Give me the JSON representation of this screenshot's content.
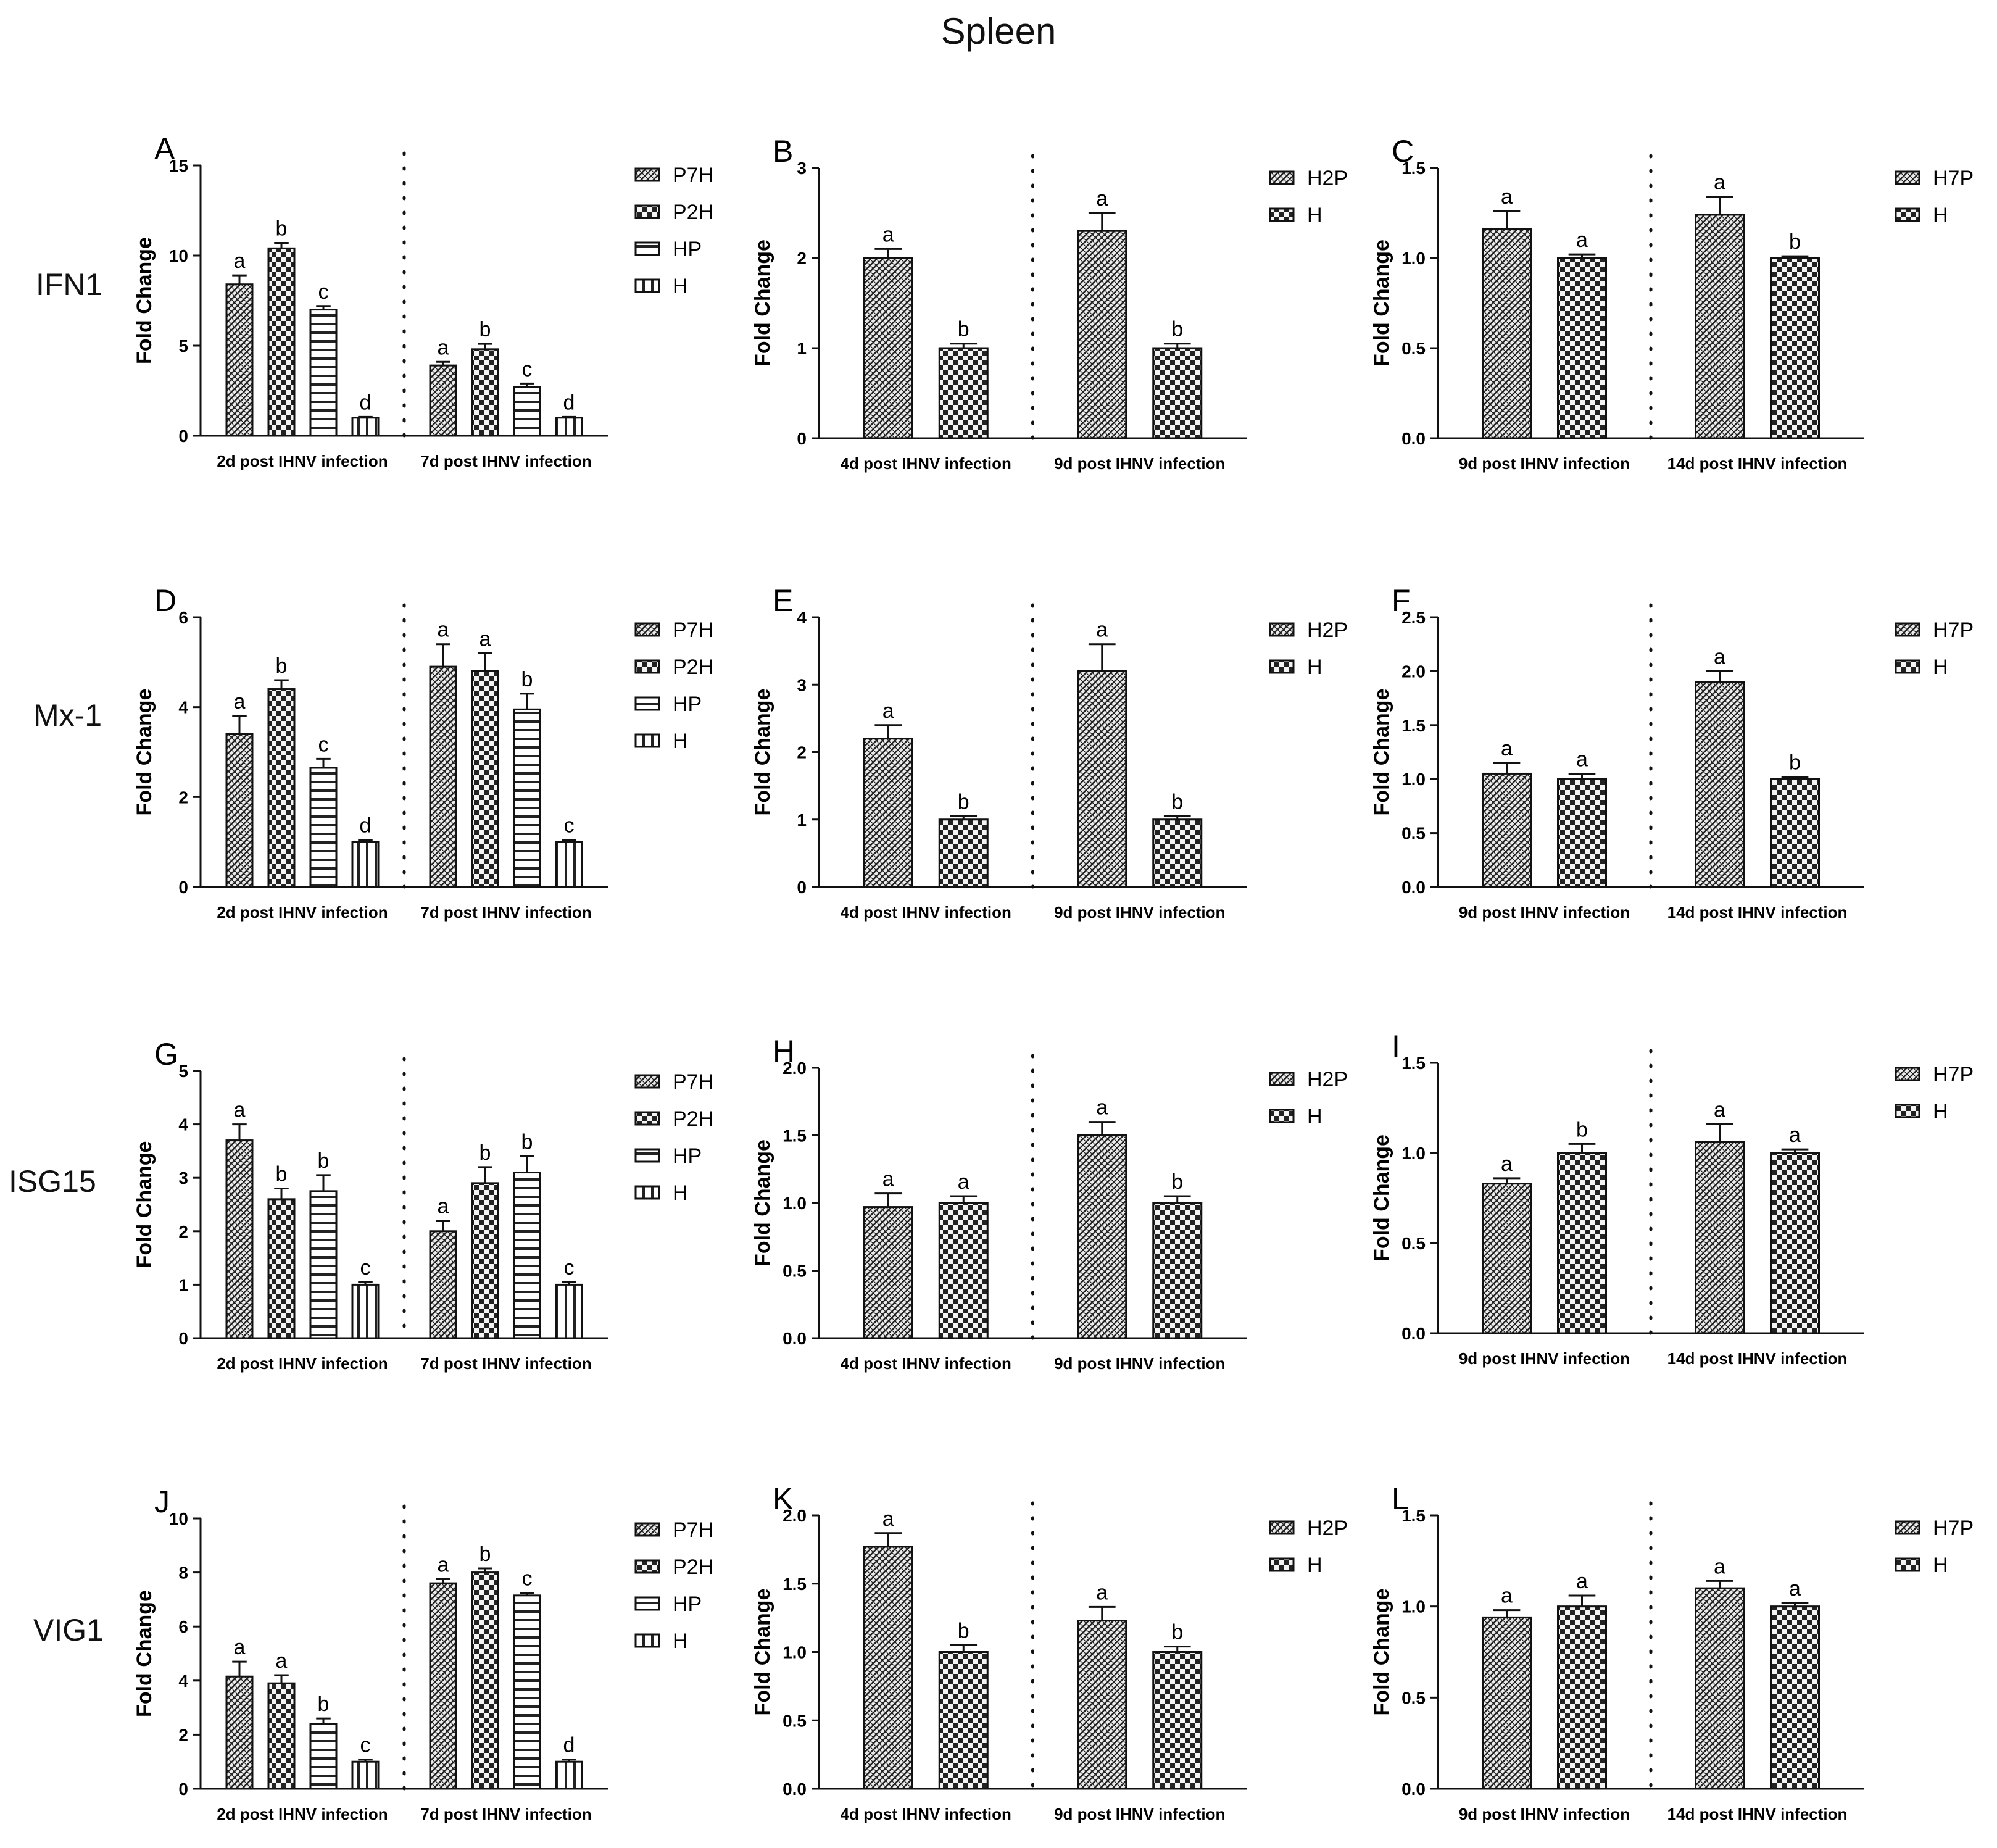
{
  "figure_title": "Spleen",
  "row_labels": [
    "IFN1",
    "Mx-1",
    "ISG15",
    "VIG1"
  ],
  "colors": {
    "bar_fill": "#e9e9e9",
    "bar_pattern": "#222222",
    "axis": "#111111"
  },
  "chart_data": [
    {
      "panel": "A",
      "type": "bar",
      "ylabel": "Fold Change",
      "ylim": [
        0,
        15
      ],
      "yticks": [
        "0",
        "5",
        "10",
        "15"
      ],
      "groups": [
        "2d post IHNV infection",
        "7d post IHNV infection"
      ],
      "series": [
        {
          "name": "P7H",
          "pattern": "dense",
          "values": [
            8.4,
            3.9
          ],
          "errors": [
            0.5,
            0.2
          ],
          "letters": [
            "a",
            "a"
          ]
        },
        {
          "name": "P2H",
          "pattern": "checker",
          "values": [
            10.4,
            4.8
          ],
          "errors": [
            0.3,
            0.3
          ],
          "letters": [
            "b",
            "b"
          ]
        },
        {
          "name": "HP",
          "pattern": "hlines",
          "values": [
            7.0,
            2.7
          ],
          "errors": [
            0.2,
            0.2
          ],
          "letters": [
            "c",
            "c"
          ]
        },
        {
          "name": "H",
          "pattern": "vlines",
          "values": [
            1.0,
            1.0
          ],
          "errors": [
            0.05,
            0.05
          ],
          "letters": [
            "d",
            "d"
          ]
        }
      ]
    },
    {
      "panel": "B",
      "type": "bar",
      "ylabel": "Fold Change",
      "ylim": [
        0,
        3
      ],
      "yticks": [
        "0",
        "1",
        "2",
        "3"
      ],
      "groups": [
        "4d post IHNV infection",
        "9d post IHNV infection"
      ],
      "series": [
        {
          "name": "H2P",
          "pattern": "dense",
          "values": [
            2.0,
            2.3
          ],
          "errors": [
            0.1,
            0.2
          ],
          "letters": [
            "a",
            "a"
          ]
        },
        {
          "name": "H",
          "pattern": "checker",
          "values": [
            1.0,
            1.0
          ],
          "errors": [
            0.05,
            0.05
          ],
          "letters": [
            "b",
            "b"
          ]
        }
      ]
    },
    {
      "panel": "C",
      "type": "bar",
      "ylabel": "Fold Change",
      "ylim": [
        0,
        1.5
      ],
      "yticks": [
        "0.0",
        "0.5",
        "1.0",
        "1.5"
      ],
      "groups": [
        "9d post IHNV infection",
        "14d post IHNV infection"
      ],
      "series": [
        {
          "name": "H7P",
          "pattern": "dense",
          "values": [
            1.16,
            1.24
          ],
          "errors": [
            0.1,
            0.1
          ],
          "letters": [
            "a",
            "a"
          ]
        },
        {
          "name": "H",
          "pattern": "checker",
          "values": [
            1.0,
            1.0
          ],
          "errors": [
            0.02,
            0.01
          ],
          "letters": [
            "a",
            "b"
          ]
        }
      ]
    },
    {
      "panel": "D",
      "type": "bar",
      "ylabel": "Fold Change",
      "ylim": [
        0,
        6
      ],
      "yticks": [
        "0",
        "2",
        "4",
        "6"
      ],
      "groups": [
        "2d post IHNV infection",
        "7d post IHNV infection"
      ],
      "series": [
        {
          "name": "P7H",
          "pattern": "dense",
          "values": [
            3.4,
            4.9
          ],
          "errors": [
            0.4,
            0.5
          ],
          "letters": [
            "a",
            "a"
          ]
        },
        {
          "name": "P2H",
          "pattern": "checker",
          "values": [
            4.4,
            4.8
          ],
          "errors": [
            0.2,
            0.4
          ],
          "letters": [
            "b",
            "a"
          ]
        },
        {
          "name": "HP",
          "pattern": "hlines",
          "values": [
            2.65,
            3.95
          ],
          "errors": [
            0.2,
            0.35
          ],
          "letters": [
            "c",
            "b"
          ]
        },
        {
          "name": "H",
          "pattern": "vlines",
          "values": [
            1.0,
            1.0
          ],
          "errors": [
            0.05,
            0.05
          ],
          "letters": [
            "d",
            "c"
          ]
        }
      ]
    },
    {
      "panel": "E",
      "type": "bar",
      "ylabel": "Fold Change",
      "ylim": [
        0,
        4
      ],
      "yticks": [
        "0",
        "1",
        "2",
        "3",
        "4"
      ],
      "groups": [
        "4d post IHNV infection",
        "9d post IHNV infection"
      ],
      "series": [
        {
          "name": "H2P",
          "pattern": "dense",
          "values": [
            2.2,
            3.2
          ],
          "errors": [
            0.2,
            0.4
          ],
          "letters": [
            "a",
            "a"
          ]
        },
        {
          "name": "H",
          "pattern": "checker",
          "values": [
            1.0,
            1.0
          ],
          "errors": [
            0.05,
            0.05
          ],
          "letters": [
            "b",
            "b"
          ]
        }
      ]
    },
    {
      "panel": "F",
      "type": "bar",
      "ylabel": "Fold Change",
      "ylim": [
        0,
        2.5
      ],
      "yticks": [
        "0.0",
        "0.5",
        "1.0",
        "1.5",
        "2.0",
        "2.5"
      ],
      "groups": [
        "9d post IHNV infection",
        "14d post IHNV infection"
      ],
      "series": [
        {
          "name": "H7P",
          "pattern": "dense",
          "values": [
            1.05,
            1.9
          ],
          "errors": [
            0.1,
            0.1
          ],
          "letters": [
            "a",
            "a"
          ]
        },
        {
          "name": "H",
          "pattern": "checker",
          "values": [
            1.0,
            1.0
          ],
          "errors": [
            0.05,
            0.02
          ],
          "letters": [
            "a",
            "b"
          ]
        }
      ]
    },
    {
      "panel": "G",
      "type": "bar",
      "ylabel": "Fold Change",
      "ylim": [
        0,
        5
      ],
      "yticks": [
        "0",
        "1",
        "2",
        "3",
        "4",
        "5"
      ],
      "groups": [
        "2d post IHNV infection",
        "7d post IHNV infection"
      ],
      "series": [
        {
          "name": "P7H",
          "pattern": "dense",
          "values": [
            3.7,
            2.0
          ],
          "errors": [
            0.3,
            0.2
          ],
          "letters": [
            "a",
            "a"
          ]
        },
        {
          "name": "P2H",
          "pattern": "checker",
          "values": [
            2.6,
            2.9
          ],
          "errors": [
            0.2,
            0.3
          ],
          "letters": [
            "b",
            "b"
          ]
        },
        {
          "name": "HP",
          "pattern": "hlines",
          "values": [
            2.75,
            3.1
          ],
          "errors": [
            0.3,
            0.3
          ],
          "letters": [
            "b",
            "b"
          ]
        },
        {
          "name": "H",
          "pattern": "vlines",
          "values": [
            1.0,
            1.0
          ],
          "errors": [
            0.05,
            0.05
          ],
          "letters": [
            "c",
            "c"
          ]
        }
      ]
    },
    {
      "panel": "H",
      "type": "bar",
      "ylabel": "Fold Change",
      "ylim": [
        0,
        2.0
      ],
      "yticks": [
        "0.0",
        "0.5",
        "1.0",
        "1.5",
        "2.0"
      ],
      "groups": [
        "4d post IHNV infection",
        "9d post IHNV infection"
      ],
      "series": [
        {
          "name": "H2P",
          "pattern": "dense",
          "values": [
            0.97,
            1.5
          ],
          "errors": [
            0.1,
            0.1
          ],
          "letters": [
            "a",
            "a"
          ]
        },
        {
          "name": "H",
          "pattern": "checker",
          "values": [
            1.0,
            1.0
          ],
          "errors": [
            0.05,
            0.05
          ],
          "letters": [
            "a",
            "b"
          ]
        }
      ]
    },
    {
      "panel": "I",
      "type": "bar",
      "ylabel": "Fold Change",
      "ylim": [
        0,
        1.5
      ],
      "yticks": [
        "0.0",
        "0.5",
        "1.0",
        "1.5"
      ],
      "groups": [
        "9d post IHNV infection",
        "14d post IHNV infection"
      ],
      "series": [
        {
          "name": "H7P",
          "pattern": "dense",
          "values": [
            0.83,
            1.06
          ],
          "errors": [
            0.03,
            0.1
          ],
          "letters": [
            "a",
            "a"
          ]
        },
        {
          "name": "H",
          "pattern": "checker",
          "values": [
            1.0,
            1.0
          ],
          "errors": [
            0.05,
            0.02
          ],
          "letters": [
            "b",
            "a"
          ]
        }
      ]
    },
    {
      "panel": "J",
      "type": "bar",
      "ylabel": "Fold Change",
      "ylim": [
        0,
        10
      ],
      "yticks": [
        "0",
        "2",
        "4",
        "6",
        "8",
        "10"
      ],
      "groups": [
        "2d post IHNV infection",
        "7d post IHNV infection"
      ],
      "series": [
        {
          "name": "P7H",
          "pattern": "dense",
          "values": [
            4.15,
            7.6
          ],
          "errors": [
            0.55,
            0.15
          ],
          "letters": [
            "a",
            "a"
          ]
        },
        {
          "name": "P2H",
          "pattern": "checker",
          "values": [
            3.9,
            8.0
          ],
          "errors": [
            0.3,
            0.15
          ],
          "letters": [
            "a",
            "b"
          ]
        },
        {
          "name": "HP",
          "pattern": "hlines",
          "values": [
            2.4,
            7.15
          ],
          "errors": [
            0.2,
            0.1
          ],
          "letters": [
            "b",
            "c"
          ]
        },
        {
          "name": "H",
          "pattern": "vlines",
          "values": [
            1.0,
            1.0
          ],
          "errors": [
            0.08,
            0.08
          ],
          "letters": [
            "c",
            "d"
          ]
        }
      ]
    },
    {
      "panel": "K",
      "type": "bar",
      "ylabel": "Fold Change",
      "ylim": [
        0,
        2.0
      ],
      "yticks": [
        "0.0",
        "0.5",
        "1.0",
        "1.5",
        "2.0"
      ],
      "groups": [
        "4d post IHNV infection",
        "9d post IHNV infection"
      ],
      "series": [
        {
          "name": "H2P",
          "pattern": "dense",
          "values": [
            1.77,
            1.23
          ],
          "errors": [
            0.1,
            0.1
          ],
          "letters": [
            "a",
            "a"
          ]
        },
        {
          "name": "H",
          "pattern": "checker",
          "values": [
            1.0,
            1.0
          ],
          "errors": [
            0.05,
            0.04
          ],
          "letters": [
            "b",
            "b"
          ]
        }
      ]
    },
    {
      "panel": "L",
      "type": "bar",
      "ylabel": "Fold Change",
      "ylim": [
        0,
        1.5
      ],
      "yticks": [
        "0.0",
        "0.5",
        "1.0",
        "1.5"
      ],
      "groups": [
        "9d post IHNV infection",
        "14d post IHNV infection"
      ],
      "series": [
        {
          "name": "H7P",
          "pattern": "dense",
          "values": [
            0.94,
            1.1
          ],
          "errors": [
            0.04,
            0.04
          ],
          "letters": [
            "a",
            "a"
          ]
        },
        {
          "name": "H",
          "pattern": "checker",
          "values": [
            1.0,
            1.0
          ],
          "errors": [
            0.06,
            0.02
          ],
          "letters": [
            "a",
            "a"
          ]
        }
      ]
    }
  ]
}
